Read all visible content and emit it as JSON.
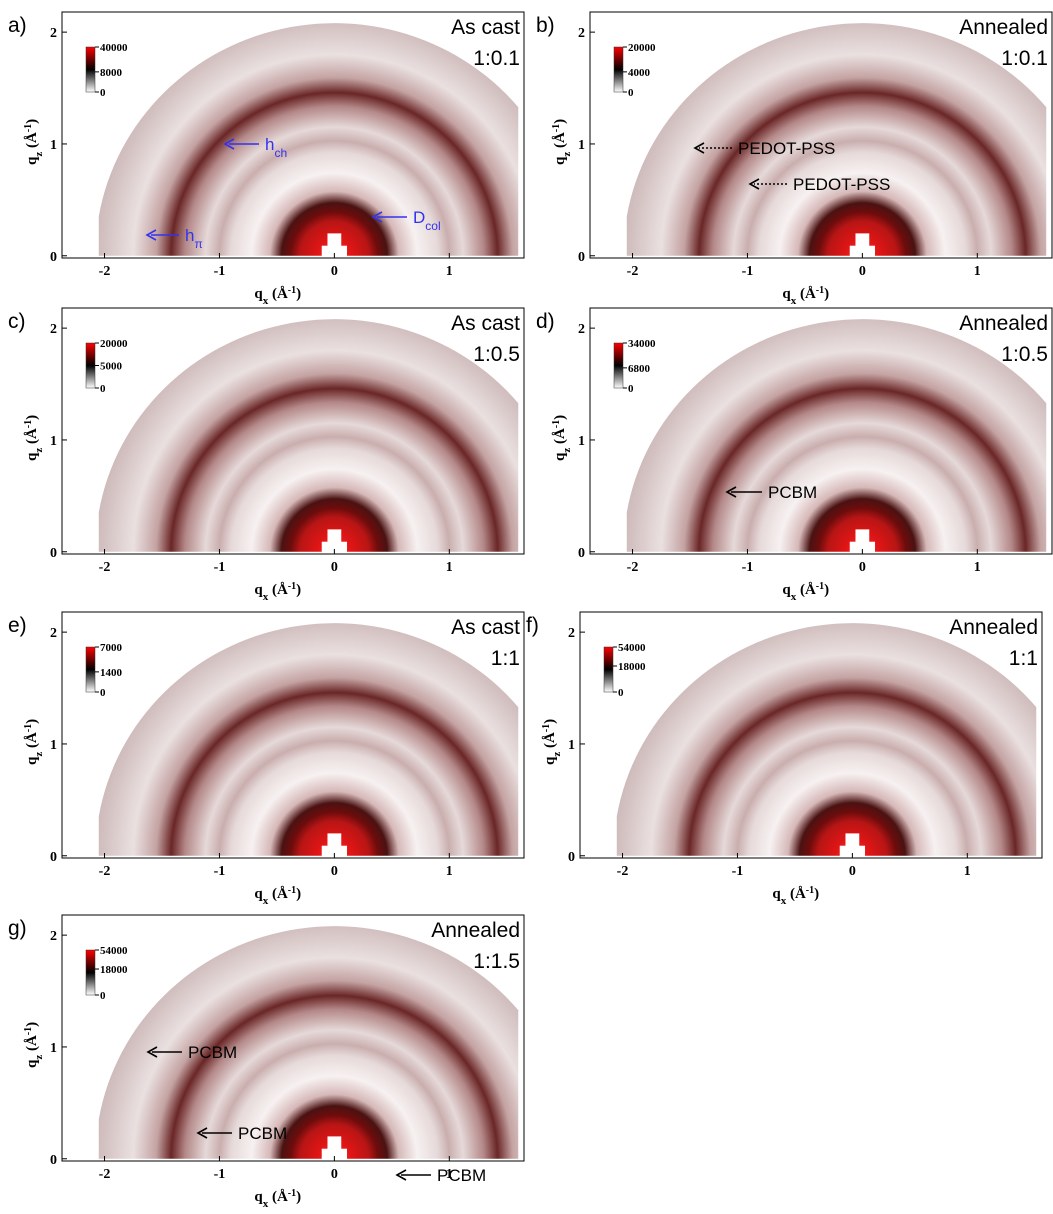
{
  "chart_data": [
    {
      "type": "image",
      "label": "a)",
      "title": [
        "As cast",
        "1:0.1"
      ],
      "x_label": {
        "symbol": "q",
        "subscript": "x",
        "unit": " (Å",
        "exponent": "-1",
        "close": ")"
      },
      "y_label": {
        "symbol": "q",
        "subscript": "z",
        "unit": " (Å",
        "exponent": "-1",
        "close": ")"
      },
      "xlim": [
        -2.37,
        1.65
      ],
      "ylim": [
        -0.02,
        2.18
      ],
      "xticks": [
        -2,
        -1,
        0,
        1
      ],
      "yticks": [
        0,
        1,
        2
      ],
      "colorbar": {
        "clim": [
          0,
          40000
        ],
        "scale": "sqrt",
        "ticks": [
          0,
          8000,
          40000
        ],
        "colors": [
          "#ffffff",
          "#000000",
          "#ff0000"
        ]
      },
      "annotation_color": "#3333ee",
      "arrow_style": "solid",
      "annotations": [
        {
          "text": "h",
          "subscript": "ch"
        },
        {
          "text": "h",
          "subscript": "π"
        },
        {
          "text": "D",
          "subscript": "col"
        }
      ]
    },
    {
      "type": "image",
      "label": "b)",
      "title": [
        "Annealed",
        "1:0.1"
      ],
      "x_label": {
        "symbol": "q",
        "subscript": "x",
        "unit": " (Å",
        "exponent": "-1",
        "close": ")"
      },
      "y_label": {
        "symbol": "q",
        "subscript": "z",
        "unit": " (Å",
        "exponent": "-1",
        "close": ")"
      },
      "xlim": [
        -2.37,
        1.65
      ],
      "ylim": [
        -0.02,
        2.18
      ],
      "xticks": [
        -2,
        -1,
        0,
        1
      ],
      "yticks": [
        0,
        1,
        2
      ],
      "colorbar": {
        "clim": [
          0,
          20000
        ],
        "scale": "sqrt",
        "ticks": [
          0,
          4000,
          20000
        ],
        "colors": [
          "#ffffff",
          "#000000",
          "#ff0000"
        ]
      },
      "annotation_color": "#000000",
      "arrow_style": "dotted",
      "annotations": [
        {
          "text": "PEDOT-PSS"
        },
        {
          "text": "PEDOT-PSS"
        }
      ]
    },
    {
      "type": "image",
      "label": "c)",
      "title": [
        "As cast",
        "1:0.5"
      ],
      "x_label": {
        "symbol": "q",
        "subscript": "x",
        "unit": " (Å",
        "exponent": "-1",
        "close": ")"
      },
      "y_label": {
        "symbol": "q",
        "subscript": "z",
        "unit": " (Å",
        "exponent": "-1",
        "close": ")"
      },
      "xlim": [
        -2.37,
        1.65
      ],
      "ylim": [
        -0.02,
        2.18
      ],
      "xticks": [
        -2,
        -1,
        0,
        1
      ],
      "yticks": [
        0,
        1,
        2
      ],
      "colorbar": {
        "clim": [
          0,
          20000
        ],
        "scale": "sqrt",
        "ticks": [
          0,
          5000,
          20000
        ],
        "colors": [
          "#ffffff",
          "#000000",
          "#ff0000"
        ]
      },
      "annotations": []
    },
    {
      "type": "image",
      "label": "d)",
      "title": [
        "Annealed",
        "1:0.5"
      ],
      "x_label": {
        "symbol": "q",
        "subscript": "x",
        "unit": " (Å",
        "exponent": "-1",
        "close": ")"
      },
      "y_label": {
        "symbol": "q",
        "subscript": "z",
        "unit": " (Å",
        "exponent": "-1",
        "close": ")"
      },
      "xlim": [
        -2.37,
        1.65
      ],
      "ylim": [
        -0.02,
        2.18
      ],
      "xticks": [
        -2,
        -1,
        0,
        1
      ],
      "yticks": [
        0,
        1,
        2
      ],
      "colorbar": {
        "clim": [
          0,
          34000
        ],
        "scale": "sqrt",
        "ticks": [
          0,
          6800,
          34000
        ],
        "colors": [
          "#ffffff",
          "#000000",
          "#ff0000"
        ]
      },
      "annotation_color": "#000000",
      "arrow_style": "solid",
      "annotations": [
        {
          "text": "PCBM"
        }
      ]
    },
    {
      "type": "image",
      "label": "e)",
      "title": [
        "As cast",
        "1:1"
      ],
      "x_label": {
        "symbol": "q",
        "subscript": "x",
        "unit": " (Å",
        "exponent": "-1",
        "close": ")"
      },
      "y_label": {
        "symbol": "q",
        "subscript": "z",
        "unit": " (Å",
        "exponent": "-1",
        "close": ")"
      },
      "xlim": [
        -2.37,
        1.65
      ],
      "ylim": [
        -0.02,
        2.18
      ],
      "xticks": [
        -2,
        -1,
        0,
        1
      ],
      "yticks": [
        0,
        1,
        2
      ],
      "colorbar": {
        "clim": [
          0,
          7000
        ],
        "scale": "sqrt",
        "ticks": [
          0,
          1400,
          7000
        ],
        "colors": [
          "#ffffff",
          "#000000",
          "#ff0000"
        ]
      },
      "annotations": []
    },
    {
      "type": "image",
      "label": "f)",
      "title": [
        "Annealed",
        "1:1"
      ],
      "x_label": {
        "symbol": "q",
        "subscript": "x",
        "unit": " (Å",
        "exponent": "-1",
        "close": ")"
      },
      "y_label": {
        "symbol": "q",
        "subscript": "z",
        "unit": " (Å",
        "exponent": "-1",
        "close": ")"
      },
      "xlim": [
        -2.37,
        1.65
      ],
      "ylim": [
        -0.02,
        2.18
      ],
      "xticks": [
        -2,
        -1,
        0,
        1
      ],
      "yticks": [
        0,
        1,
        2
      ],
      "colorbar": {
        "clim": [
          0,
          54000
        ],
        "scale": "sqrt",
        "ticks": [
          0,
          18000,
          54000
        ],
        "colors": [
          "#ffffff",
          "#000000",
          "#ff0000"
        ]
      },
      "annotations": []
    },
    {
      "type": "image",
      "label": "g)",
      "title": [
        "Annealed",
        "1:1.5"
      ],
      "x_label": {
        "symbol": "q",
        "subscript": "x",
        "unit": " (Å",
        "exponent": "-1",
        "close": ")"
      },
      "y_label": {
        "symbol": "q",
        "subscript": "z",
        "unit": " (Å",
        "exponent": "-1",
        "close": ")"
      },
      "xlim": [
        -2.37,
        1.65
      ],
      "ylim": [
        -0.02,
        2.18
      ],
      "xticks": [
        -2,
        -1,
        0,
        1
      ],
      "yticks": [
        0,
        1,
        2
      ],
      "colorbar": {
        "clim": [
          0,
          54000
        ],
        "scale": "sqrt",
        "ticks": [
          0,
          18000,
          54000
        ],
        "colors": [
          "#ffffff",
          "#000000",
          "#ff0000"
        ]
      },
      "annotation_color": "#000000",
      "arrow_style": "solid",
      "annotations": [
        {
          "text": "PCBM"
        },
        {
          "text": "PCBM"
        },
        {
          "text": "PCBM"
        }
      ]
    }
  ]
}
